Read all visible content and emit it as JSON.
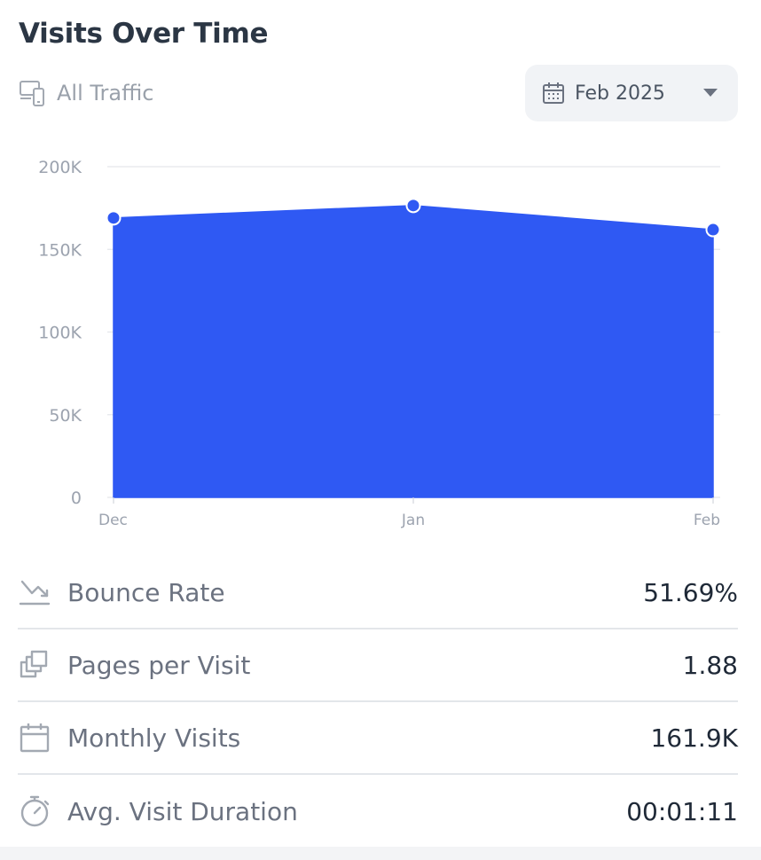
{
  "header": {
    "title": "Visits Over Time"
  },
  "filter": {
    "traffic_label": "All Traffic",
    "date_label": "Feb 2025"
  },
  "colors": {
    "series": "#2f59f3",
    "grid": "#e5e7eb"
  },
  "chart_data": {
    "type": "area",
    "title": "Visits Over Time",
    "x": [
      "Dec",
      "Jan",
      "Feb"
    ],
    "series": [
      {
        "name": "Visits",
        "values": [
          169000,
          176500,
          161900
        ]
      }
    ],
    "ylim": [
      0,
      200000
    ],
    "yticks": [
      0,
      50000,
      100000,
      150000,
      200000
    ],
    "ytick_labels": [
      "0",
      "50K",
      "100K",
      "150K",
      "200K"
    ],
    "grid": true
  },
  "metrics": [
    {
      "icon": "bounce-icon",
      "label": "Bounce Rate",
      "value": "51.69%"
    },
    {
      "icon": "pages-icon",
      "label": "Pages per Visit",
      "value": "1.88"
    },
    {
      "icon": "calendar-icon",
      "label": "Monthly Visits",
      "value": "161.9K"
    },
    {
      "icon": "stopwatch-icon",
      "label": "Avg. Visit Duration",
      "value": "00:01:11"
    }
  ]
}
